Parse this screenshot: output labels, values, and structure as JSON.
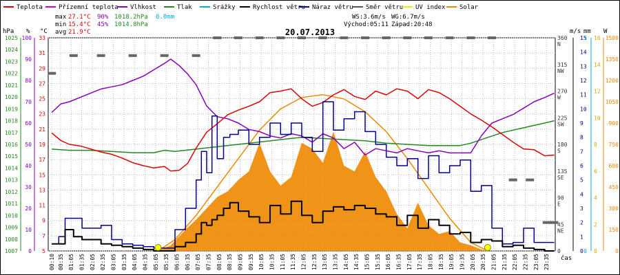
{
  "chart_data": {
    "type": "line",
    "title": "20.07.2013",
    "legend": [
      {
        "label": "Teplota",
        "color": "#dd0000"
      },
      {
        "label": "Přízemní teplota",
        "color": "#cc00cc"
      },
      {
        "label": "Vlhkost",
        "color": "#8800bb"
      },
      {
        "label": "Tlak",
        "color": "#228822"
      },
      {
        "label": "Srážky",
        "color": "#00aadd"
      },
      {
        "label": "Rychlost větru",
        "color": "#000000"
      },
      {
        "label": "Náraz větru",
        "color": "#000088"
      },
      {
        "label": "Směr větru",
        "color": "#555555"
      },
      {
        "label": "UV index",
        "color": "#eeee00"
      },
      {
        "label": "Solar",
        "color": "#ee8800"
      }
    ],
    "stats": {
      "max_label": "max",
      "max_temp": "27.1°C",
      "max_hum": "90%",
      "max_press": "1018.2hPa",
      "rain": "0.0mm",
      "min_label": "min",
      "min_temp": "15.4°C",
      "min_hum": "45%",
      "min_press": "1014.8hPa",
      "avg_label": "avg",
      "avg_temp": "21.9°C"
    },
    "wind_info": {
      "ws": "WS:3.6m/s",
      "wg": "WG:6.7m/s",
      "sunrise": "Východ:05:11",
      "sunset": "Západ:20:48"
    },
    "xlabel": "čas",
    "xticks": [
      "00:10",
      "00:35",
      "01:05",
      "01:35",
      "02:05",
      "02:35",
      "03:05",
      "03:35",
      "04:05",
      "04:35",
      "05:05",
      "05:35",
      "06:05",
      "06:35",
      "07:05",
      "07:35",
      "08:05",
      "08:35",
      "09:05",
      "09:35",
      "10:05",
      "10:35",
      "11:05",
      "11:35",
      "12:05",
      "12:35",
      "13:05",
      "13:35",
      "14:05",
      "14:35",
      "15:05",
      "15:35",
      "16:05",
      "16:35",
      "17:05",
      "17:35",
      "18:05",
      "18:35",
      "19:05",
      "19:35",
      "20:05",
      "20:35",
      "21:05",
      "21:35",
      "22:05",
      "22:35",
      "23:05",
      "23:35"
    ],
    "axes": {
      "hpa": {
        "title": "hPa",
        "ticks": [
          "1025",
          "1024",
          "1023",
          "1022",
          "1021",
          "1020",
          "1019",
          "1018",
          "1017",
          "1016",
          "1015",
          "1014",
          "1013",
          "1012",
          "1011",
          "1010",
          "1009",
          "1008",
          "1007"
        ],
        "range": [
          1007,
          1025
        ],
        "color": "#228822"
      },
      "pct": {
        "title": "%",
        "ticks": [
          "100",
          "90",
          "80",
          "70",
          "60",
          "50",
          "40",
          "30",
          "20",
          "10",
          "0"
        ],
        "range": [
          0,
          100
        ],
        "color": "#8800bb"
      },
      "degc": {
        "title": "°C",
        "ticks": [
          "33",
          "31",
          "29",
          "27",
          "25",
          "23",
          "21",
          "19",
          "17",
          "15",
          "13",
          "11",
          "9",
          "7",
          "5"
        ],
        "range": [
          5,
          33
        ],
        "color": "#dd0000"
      },
      "ms": {
        "title": "m/s",
        "ticks": [
          "15",
          "14",
          "13",
          "12",
          "11",
          "10",
          "9",
          "8",
          "7",
          "6",
          "5",
          "4",
          "3",
          "2",
          "1",
          "0"
        ],
        "range": [
          0,
          15
        ],
        "color": "#000088"
      },
      "dir": {
        "ticks": [
          "360 N",
          "315 NW",
          "270 W",
          "225 SW",
          "180 S",
          "135 SE",
          "90 E",
          "45 NE",
          "0"
        ],
        "range": [
          0,
          360
        ]
      },
      "mm": {
        "title": "mm",
        "ticks": [
          "1",
          "0"
        ],
        "range": [
          0,
          1
        ],
        "color": "#00aadd"
      },
      "uv": {
        "ticks": [
          "16",
          "14",
          "12",
          "10",
          "8",
          "6",
          "4",
          "2",
          "0"
        ],
        "range": [
          0,
          16
        ]
      },
      "w": {
        "title": "W",
        "ticks": [
          "1500",
          "1350",
          "1200",
          "1050",
          "900",
          "750",
          "600",
          "450",
          "300",
          "150",
          "0"
        ],
        "range": [
          0,
          1500
        ],
        "color": "#ee8800"
      }
    },
    "x_hours": [
      0,
      24
    ],
    "series": [
      {
        "name": "Teplota",
        "unit": "°C",
        "color": "#dd0000",
        "x": [
          0.17,
          0.6,
          1,
          1.5,
          2,
          2.5,
          3,
          3.5,
          4,
          4.5,
          5,
          5.5,
          5.8,
          6.2,
          6.6,
          7,
          7.5,
          8,
          8.5,
          9,
          9.5,
          10,
          10.5,
          11,
          11.5,
          12,
          12.5,
          13,
          13.5,
          14,
          14.5,
          15,
          15.5,
          16,
          16.5,
          17,
          17.5,
          18,
          18.5,
          19,
          19.5,
          20,
          20.5,
          21,
          21.5,
          22,
          22.5,
          23,
          23.5,
          23.95
        ],
        "y": [
          20.5,
          19.5,
          19.0,
          18.8,
          18.4,
          18.0,
          17.7,
          17.2,
          16.6,
          16.2,
          15.9,
          16.1,
          15.5,
          15.6,
          16.5,
          18.5,
          20.6,
          21.7,
          22.9,
          23.5,
          24.0,
          24.6,
          25.8,
          26.0,
          26.3,
          25.0,
          24.0,
          24.5,
          25.5,
          26.2,
          25.3,
          24.9,
          26.0,
          25.5,
          26.3,
          26.0,
          25.0,
          26.2,
          25.8,
          25.0,
          24.0,
          23.0,
          22.2,
          21.3,
          20.3,
          19.3,
          18.4,
          18.3,
          17.5,
          17.6
        ]
      },
      {
        "name": "Vlhkost",
        "unit": "%",
        "color": "#8800bb",
        "x": [
          0.17,
          0.6,
          1,
          1.5,
          2,
          2.5,
          3,
          3.5,
          4,
          4.5,
          5,
          5.5,
          5.8,
          6.2,
          6.6,
          7,
          7.5,
          8,
          8.5,
          9,
          9.5,
          10,
          10.5,
          11,
          11.5,
          12,
          12.5,
          13,
          13.5,
          14,
          14.5,
          15,
          15.5,
          16,
          16.5,
          17,
          17.5,
          18,
          18.5,
          19,
          19.5,
          20,
          20.5,
          21,
          21.5,
          22,
          22.5,
          23,
          23.5,
          23.95
        ],
        "y": [
          65,
          69,
          70,
          72,
          74,
          76,
          77,
          78,
          80,
          82,
          85,
          88,
          90,
          87,
          83,
          78,
          68,
          63,
          62,
          60,
          57,
          56,
          54,
          53,
          55,
          54,
          51,
          55,
          53,
          48,
          51,
          45,
          48,
          47,
          46,
          48,
          47,
          46,
          47,
          46,
          46,
          46,
          54,
          60,
          62,
          64,
          67,
          70,
          72,
          74
        ]
      },
      {
        "name": "Tlak",
        "unit": "hPa",
        "color": "#228822",
        "x": [
          0.17,
          1,
          2,
          3,
          4,
          5,
          5.5,
          6,
          7,
          8,
          9,
          10,
          11,
          11.5,
          12,
          13,
          14,
          15,
          16,
          17,
          18,
          19,
          19.5,
          20,
          20.5,
          21,
          21.5,
          22,
          22.5,
          23,
          23.5,
          23.95
        ],
        "y": [
          1015.6,
          1015.5,
          1015.5,
          1015.4,
          1015.3,
          1015.3,
          1015.5,
          1015.4,
          1015.6,
          1015.8,
          1016.0,
          1016.2,
          1016.4,
          1016.5,
          1016.6,
          1016.5,
          1016.4,
          1016.3,
          1016.1,
          1016.0,
          1015.9,
          1015.9,
          1015.9,
          1016.1,
          1016.4,
          1016.7,
          1017.0,
          1017.2,
          1017.4,
          1017.6,
          1017.8,
          1018.0
        ]
      },
      {
        "name": "Rychlost větru",
        "unit": "m/s",
        "color": "#000000",
        "x": [
          0.17,
          0.5,
          0.8,
          1.2,
          1.6,
          2,
          2.5,
          3,
          3.5,
          4,
          4.5,
          5,
          5.5,
          6,
          6.5,
          7,
          7.25,
          7.5,
          7.75,
          8,
          8.3,
          8.6,
          9,
          9.5,
          10,
          10.5,
          11,
          11.5,
          12,
          12.5,
          13,
          13.5,
          14,
          14.5,
          15,
          15.5,
          16,
          16.5,
          17,
          17.5,
          18,
          18.5,
          19,
          19.5,
          20,
          20.5,
          21,
          21.5,
          22,
          22.5,
          23,
          23.5,
          23.95
        ],
        "y": [
          0.5,
          0.5,
          1.5,
          1.0,
          0.8,
          0.8,
          0.5,
          0.4,
          0.3,
          0.2,
          0.1,
          0,
          0,
          0.3,
          0.6,
          1.2,
          2.0,
          1.8,
          2.2,
          2.5,
          3.0,
          3.4,
          2.8,
          2.4,
          2.0,
          3.2,
          2.6,
          3.5,
          2.5,
          2.0,
          2.8,
          3.1,
          2.9,
          3.2,
          3.0,
          2.6,
          2.4,
          1.8,
          2.5,
          1.6,
          2.2,
          1.8,
          1.2,
          1.3,
          0.6,
          0.8,
          0.7,
          0.3,
          0.4,
          0.2,
          0.1,
          0,
          0
        ]
      },
      {
        "name": "Náraz větru",
        "unit": "m/s",
        "color": "#000088",
        "x": [
          0.17,
          0.5,
          0.8,
          1.2,
          1.6,
          2,
          2.5,
          3,
          3.5,
          4,
          4.5,
          5,
          5.5,
          6,
          6.5,
          7,
          7.25,
          7.5,
          7.75,
          8,
          8.3,
          8.6,
          9,
          9.5,
          10,
          10.5,
          11,
          11.5,
          12,
          12.5,
          13,
          13.5,
          14,
          14.5,
          15,
          15.5,
          16,
          16.5,
          17,
          17.5,
          18,
          18.5,
          19,
          19.5,
          20,
          20.5,
          21,
          21.5,
          22,
          22.5,
          23,
          23.5,
          23.95
        ],
        "y": [
          0.5,
          1.0,
          2.3,
          2.3,
          1.6,
          1.6,
          1.8,
          0.8,
          0.5,
          0.4,
          0.3,
          0.2,
          0.2,
          1.5,
          3.0,
          5.0,
          7.0,
          5.5,
          9.5,
          6.5,
          8.0,
          8.2,
          8.5,
          7.5,
          8.0,
          9.0,
          8.2,
          9.0,
          8.0,
          7.0,
          10.5,
          8.5,
          9.3,
          9.8,
          8.4,
          7.5,
          6.6,
          6.0,
          6.5,
          5.1,
          6.7,
          5.5,
          6.0,
          6.4,
          4.2,
          4.6,
          1.6,
          0.5,
          0.6,
          1.6,
          0.6,
          0.6,
          0.6
        ]
      },
      {
        "name": "Směr větru",
        "unit": "°",
        "color": "#555555",
        "x": [
          0.17,
          1.2,
          2.5,
          4,
          5.5,
          7,
          8,
          9,
          10,
          11,
          12,
          13,
          14,
          15,
          16,
          17,
          18,
          19,
          20,
          21,
          22,
          22.8,
          23.6,
          23.95
        ],
        "y": [
          300,
          330,
          330,
          330,
          330,
          330,
          360,
          360,
          360,
          360,
          360,
          360,
          360,
          360,
          360,
          360,
          360,
          360,
          360,
          360,
          120,
          120,
          48,
          48
        ]
      },
      {
        "name": "Solar",
        "unit": "W/m²",
        "color": "#ee8800",
        "x": [
          5.2,
          5.8,
          6.5,
          7,
          7.5,
          8,
          8.5,
          9,
          9.5,
          10,
          10.5,
          11,
          11.5,
          12,
          12.5,
          13,
          13.5,
          14,
          14.5,
          15,
          15.5,
          16,
          16.5,
          17,
          17.5,
          18,
          18.5,
          19,
          19.5,
          20,
          20.5,
          20.8
        ],
        "y": [
          0,
          40,
          150,
          220,
          300,
          380,
          420,
          500,
          560,
          760,
          560,
          460,
          520,
          760,
          720,
          620,
          840,
          600,
          560,
          700,
          520,
          420,
          260,
          160,
          340,
          180,
          120,
          140,
          60,
          40,
          10,
          0
        ]
      },
      {
        "name": "Solar (theoretical)",
        "unit": "W/m²",
        "color": "#ee8800",
        "x": [
          5.2,
          6,
          7,
          8,
          9,
          10,
          11,
          12,
          13,
          14,
          15,
          16,
          17,
          18,
          19,
          20,
          20.8
        ],
        "y": [
          0,
          80,
          250,
          450,
          650,
          850,
          1000,
          1080,
          1100,
          1070,
          980,
          840,
          650,
          440,
          230,
          60,
          0
        ]
      }
    ],
    "uv_markers": [
      5.2,
      20.8
    ]
  }
}
